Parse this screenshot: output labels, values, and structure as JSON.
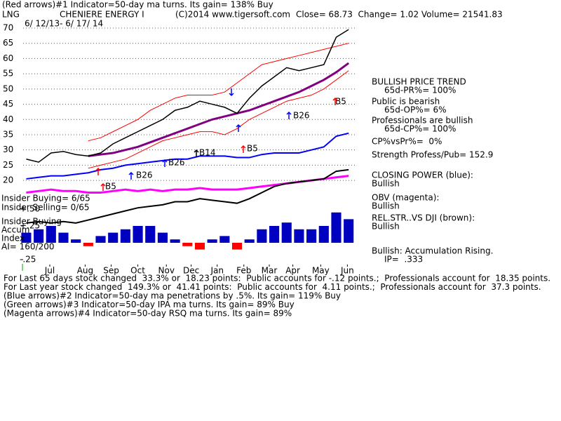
{
  "header": {
    "line1": "(Red arrows)#1 Indicator=50-day ma turns. Its gain= 138% Buy",
    "ticker": "LNG",
    "copyright": "(C)2014 www.tigersoft.com",
    "quote": "Close= 68.73  Change= 1.02 Volume= 21541.83",
    "dates": "6/ 12/13- 6/ 17/ 14"
  },
  "chart_data": {
    "type": "line",
    "title": "CHENIERE ENERGY I",
    "x": [
      0,
      2,
      4,
      6,
      8,
      10,
      12,
      14,
      16,
      18,
      20,
      22,
      24,
      26,
      28,
      30,
      32,
      34,
      36,
      38,
      40,
      42,
      44,
      46,
      48,
      50,
      52
    ],
    "xlim": [
      -0.5,
      53
    ],
    "xticks": [
      {
        "value": 3.8,
        "label": "Jul"
      },
      {
        "value": 9.5,
        "label": "Aug"
      },
      {
        "value": 13.7,
        "label": "Sep"
      },
      {
        "value": 18,
        "label": "Oct"
      },
      {
        "value": 22.6,
        "label": "Nov"
      },
      {
        "value": 26.6,
        "label": "Dec"
      },
      {
        "value": 30.8,
        "label": "Jan"
      },
      {
        "value": 35.1,
        "label": "Feb"
      },
      {
        "value": 39.2,
        "label": "Mar"
      },
      {
        "value": 43,
        "label": "Apr"
      },
      {
        "value": 47.5,
        "label": "May"
      },
      {
        "value": 51.8,
        "label": "Jun"
      }
    ],
    "ylim": [
      -8.3,
      72.3
    ],
    "yticks": [
      20,
      25,
      30,
      35,
      40,
      45,
      50,
      55,
      60,
      65,
      70
    ],
    "grid": true,
    "y2lim": [
      -0.354,
      3.29
    ],
    "y2ticks": [
      {
        "value": 0.5,
        "label": "+.50"
      },
      {
        "value": 0.25,
        "label": "+.25"
      },
      {
        "value": -0.25,
        "label": "-.25"
      }
    ],
    "series": [
      {
        "color": "#ff0000",
        "width": 1,
        "values": [
          null,
          null,
          null,
          null,
          null,
          33,
          34,
          36,
          38,
          40,
          43,
          45,
          47,
          48,
          48,
          48,
          49,
          52,
          55,
          58,
          59,
          60,
          61,
          62,
          63,
          64,
          65
        ]
      },
      {
        "color": "#ff0000",
        "width": 1,
        "values": [
          null,
          null,
          null,
          null,
          null,
          24,
          25,
          26,
          27,
          29,
          31,
          33,
          34,
          35,
          36,
          36,
          35,
          37,
          40,
          42,
          44,
          46,
          47,
          48,
          50,
          53,
          56
        ]
      },
      {
        "color": "#800080",
        "width": 3,
        "values": [
          null,
          null,
          null,
          null,
          null,
          28,
          28.5,
          29,
          30,
          31,
          32.5,
          34,
          35.5,
          37,
          38.5,
          40,
          41,
          42,
          43,
          44.5,
          46,
          47.5,
          49,
          51,
          53,
          55.5,
          58.5
        ]
      },
      {
        "color": "#000000",
        "width": 1.5,
        "values": [
          27,
          26,
          29,
          29.5,
          28.5,
          28,
          29,
          32,
          34,
          36,
          38,
          40,
          43,
          44,
          46,
          45,
          44,
          42,
          47,
          51,
          54,
          57,
          56,
          57,
          58,
          67,
          69.5
        ]
      },
      {
        "color": "#0000ff",
        "width": 2,
        "values": [
          20.5,
          21,
          21.5,
          21.5,
          22,
          22.5,
          23.5,
          24,
          25,
          25.5,
          26,
          26.5,
          27,
          27,
          28,
          28,
          28,
          27.5,
          27.5,
          28.5,
          29,
          29,
          29,
          30,
          31,
          34.5,
          35.5
        ]
      },
      {
        "color": "#ff00ff",
        "width": 3,
        "values": [
          16,
          16.5,
          17,
          16.5,
          16.5,
          16,
          16,
          16.5,
          17,
          16.5,
          17,
          16.5,
          17,
          17,
          17.5,
          17,
          17,
          17,
          17.5,
          18,
          18.5,
          19,
          19.5,
          20,
          20.5,
          21,
          21.5
        ]
      },
      {
        "color": "#000000",
        "width": 2,
        "values": [
          6,
          6.5,
          6,
          6.5,
          6,
          7,
          8,
          9,
          10,
          11,
          11.5,
          12,
          13,
          13,
          14,
          13.5,
          13,
          12.5,
          14,
          16,
          18,
          19,
          19.5,
          20,
          20.5,
          23,
          23.5
        ]
      },
      {
        "type": "bar",
        "axis": "y2",
        "color": "#0000c0",
        "negative_color": "#ff0000",
        "values": [
          0.15,
          0.2,
          0.25,
          0.15,
          0.05,
          -0.05,
          0.1,
          0.15,
          0.2,
          0.25,
          0.25,
          0.15,
          0.05,
          -0.05,
          -0.1,
          0.05,
          0.1,
          -0.1,
          0.05,
          0.2,
          0.25,
          0.3,
          0.2,
          0.2,
          0.25,
          0.45,
          0.35
        ]
      }
    ],
    "annotations": [
      "B5",
      "B26",
      "B26",
      "B14",
      "B5",
      "B26",
      "B5"
    ]
  },
  "left_labels": [
    "Insider Buying= 6/65",
    "Insider Selling= 0/65",
    "Insider Buying",
    "Accum",
    "Index",
    "AI= 160/200"
  ],
  "right_panel": [
    "BULLISH PRICE TREND",
    "65d-PR%= 100%",
    "Public is bearish",
    "65d-OP%= 6%",
    "Professionals are bullish",
    "65d-CP%= 100%",
    "CP%vsPr%=  0%",
    "Strength Profess/Pub= 152.9",
    "CLOSING POWER (blue):",
    "Bullish",
    "OBV (magenta):",
    "Bullish",
    "REL.STR..VS DJI (brown):",
    "Bullish",
    "Bullish: Accumulation Rising.",
    "IP=  .333"
  ],
  "footer": [
    "For Last 65 days stock changed  33.3% or  18.23 points:  Public accounts for -.12 points.;  Professionals account for  18.35 points.",
    "For Last year stock changed  149.3% or  41.41 points:  Public accounts for  4.11 points.;  Professionals account for  37.3 points.",
    "(Blue arrows)#2 Indicator=50-day ma penetrations by .5%. Its gain= 119% Buy",
    "(Green arrows)#3 Indicator=50-day IPA ma turns. Its gain= 89% Buy",
    "(Magenta arrows)#4 Indicator=50-day RSQ ma turns. Its gain= 89%"
  ]
}
